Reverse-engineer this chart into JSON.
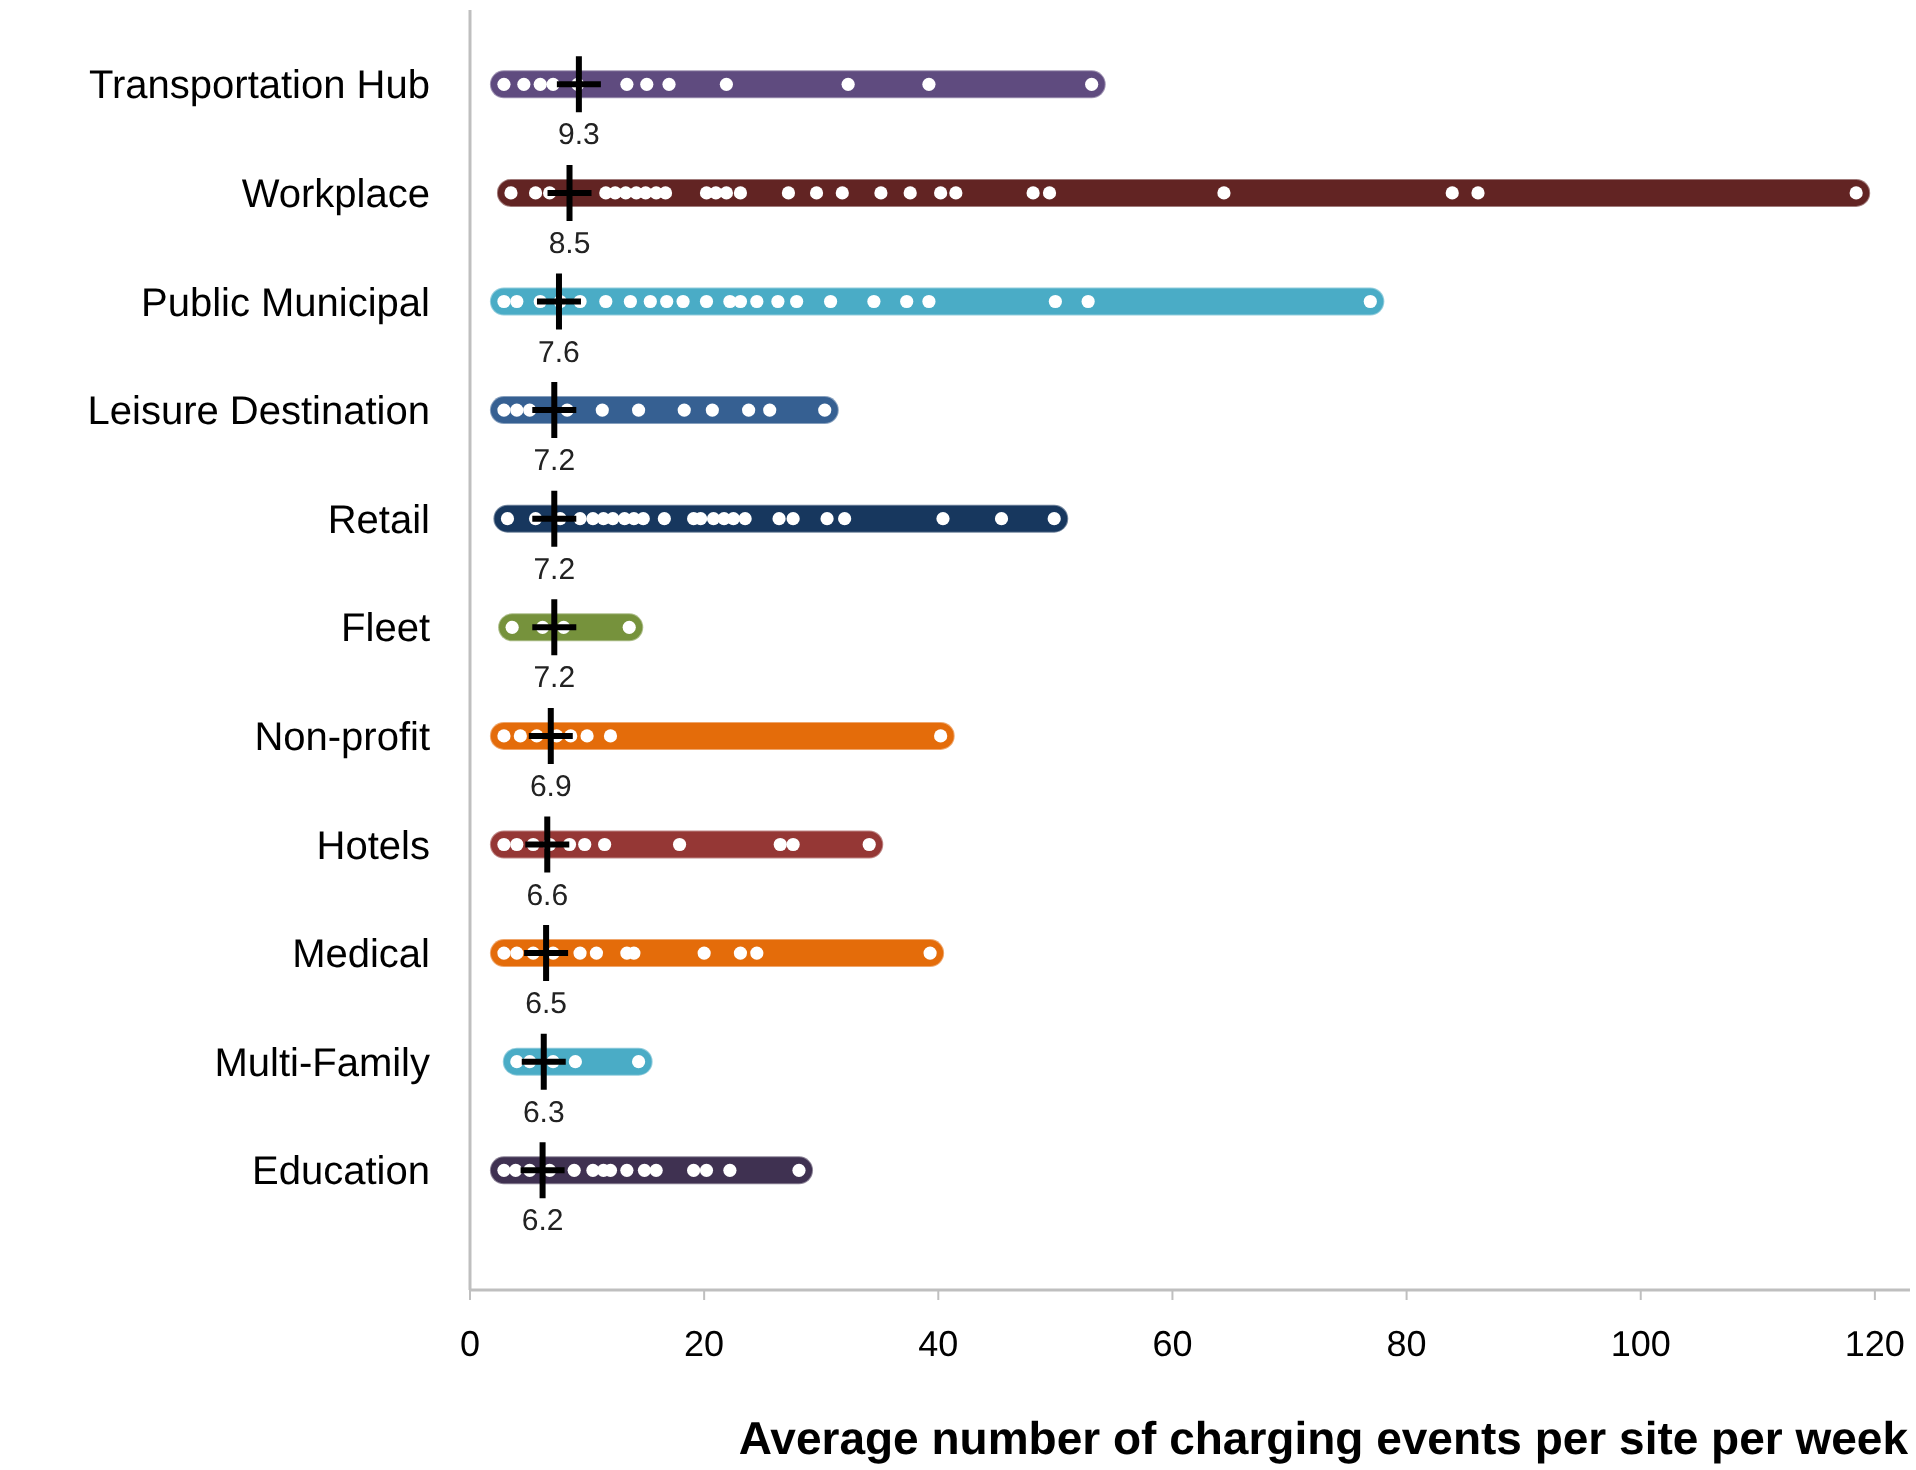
{
  "chart_data": {
    "type": "bar",
    "orientation": "horizontal",
    "xlabel": "Average number of charging events per site per week",
    "categories": [
      "Transportation Hub",
      "Workplace",
      "Public Municipal",
      "Leisure Destination",
      "Retail",
      "Fleet",
      "Non-profit",
      "Hotels",
      "Medical",
      "Multi-Family",
      "Education"
    ],
    "base": [
      1.7,
      2.3,
      1.7,
      1.7,
      2.0,
      2.4,
      1.7,
      1.7,
      1.7,
      2.8,
      1.7
    ],
    "values": [
      52.6,
      117.3,
      76.4,
      29.8,
      49.1,
      12.4,
      39.7,
      33.6,
      38.8,
      12.8,
      27.6
    ],
    "colors": [
      "#5f4b7f",
      "#622423",
      "#4aacc6",
      "#366092",
      "#17375e",
      "#76923c",
      "#e46c0a",
      "#953735",
      "#e46c0a",
      "#4aacc6",
      "#3f3151"
    ],
    "xlim": [
      0,
      123
    ],
    "xticks": [
      0,
      20,
      40,
      60,
      80,
      100,
      120
    ],
    "grid": false,
    "series": [
      {
        "type": "scatter",
        "color": "#ffffff",
        "marker": "circle",
        "x": [
          "Transportation Hub",
          "Transportation Hub",
          "Transportation Hub",
          "Transportation Hub",
          "Transportation Hub",
          "Transportation Hub",
          "Transportation Hub",
          "Transportation Hub",
          "Transportation Hub",
          "Transportation Hub",
          "Transportation Hub",
          "Transportation Hub",
          "Workplace",
          "Workplace",
          "Workplace",
          "Workplace",
          "Workplace",
          "Workplace",
          "Workplace",
          "Workplace",
          "Workplace",
          "Workplace",
          "Workplace",
          "Workplace",
          "Workplace",
          "Workplace",
          "Workplace",
          "Workplace",
          "Workplace",
          "Workplace",
          "Workplace",
          "Workplace",
          "Workplace",
          "Workplace",
          "Workplace",
          "Workplace",
          "Workplace",
          "Workplace",
          "Workplace",
          "Public Municipal",
          "Public Municipal",
          "Public Municipal",
          "Public Municipal",
          "Public Municipal",
          "Public Municipal",
          "Public Municipal",
          "Public Municipal",
          "Public Municipal",
          "Public Municipal",
          "Public Municipal",
          "Public Municipal",
          "Public Municipal",
          "Public Municipal",
          "Public Municipal",
          "Public Municipal",
          "Public Municipal",
          "Public Municipal",
          "Public Municipal",
          "Public Municipal",
          "Public Municipal",
          "Public Municipal",
          "Public Municipal",
          "Leisure Destination",
          "Leisure Destination",
          "Leisure Destination",
          "Leisure Destination",
          "Leisure Destination",
          "Leisure Destination",
          "Leisure Destination",
          "Leisure Destination",
          "Leisure Destination",
          "Leisure Destination",
          "Leisure Destination",
          "Retail",
          "Retail",
          "Retail",
          "Retail",
          "Retail",
          "Retail",
          "Retail",
          "Retail",
          "Retail",
          "Retail",
          "Retail",
          "Retail",
          "Retail",
          "Retail",
          "Retail",
          "Retail",
          "Retail",
          "Retail",
          "Retail",
          "Retail",
          "Retail",
          "Retail",
          "Retail",
          "Retail",
          "Fleet",
          "Fleet",
          "Fleet",
          "Fleet",
          "Non-profit",
          "Non-profit",
          "Non-profit",
          "Non-profit",
          "Non-profit",
          "Non-profit",
          "Non-profit",
          "Non-profit",
          "Hotels",
          "Hotels",
          "Hotels",
          "Hotels",
          "Hotels",
          "Hotels",
          "Hotels",
          "Hotels",
          "Hotels",
          "Hotels",
          "Hotels",
          "Medical",
          "Medical",
          "Medical",
          "Medical",
          "Medical",
          "Medical",
          "Medical",
          "Medical",
          "Medical",
          "Medical",
          "Medical",
          "Medical",
          "Multi-Family",
          "Multi-Family",
          "Multi-Family",
          "Multi-Family",
          "Multi-Family",
          "Education",
          "Education",
          "Education",
          "Education",
          "Education",
          "Education",
          "Education",
          "Education",
          "Education",
          "Education",
          "Education",
          "Education",
          "Education",
          "Education",
          "Education"
        ],
        "values": [
          2.9,
          4.6,
          6.0,
          7.1,
          9.2,
          13.4,
          15.1,
          17.0,
          21.9,
          32.3,
          39.2,
          53.1,
          3.5,
          5.6,
          6.8,
          11.6,
          12.4,
          13.3,
          14.2,
          15.0,
          15.9,
          16.7,
          20.2,
          21.0,
          21.9,
          23.1,
          27.2,
          29.6,
          31.8,
          35.1,
          37.6,
          40.2,
          41.5,
          48.1,
          49.5,
          64.4,
          83.9,
          86.1,
          118.4,
          2.9,
          4.0,
          6.0,
          7.7,
          9.4,
          11.6,
          13.7,
          15.4,
          16.8,
          18.2,
          20.2,
          22.2,
          23.1,
          24.5,
          26.3,
          27.9,
          30.8,
          34.5,
          37.3,
          39.2,
          50.0,
          52.8,
          76.9,
          2.9,
          4.0,
          5.1,
          8.3,
          11.3,
          14.4,
          18.3,
          20.7,
          23.8,
          25.6,
          30.3,
          3.2,
          5.6,
          7.7,
          9.4,
          10.5,
          11.4,
          12.2,
          13.2,
          14.0,
          14.8,
          16.6,
          19.1,
          19.7,
          20.8,
          21.7,
          22.5,
          23.5,
          26.4,
          27.6,
          30.5,
          32.0,
          40.4,
          45.4,
          49.9,
          3.6,
          6.2,
          8.0,
          13.6,
          2.9,
          4.3,
          5.7,
          7.4,
          8.6,
          10.0,
          12.0,
          40.2,
          2.9,
          4.0,
          5.4,
          6.8,
          8.5,
          9.8,
          11.5,
          17.9,
          26.5,
          27.6,
          34.1,
          2.9,
          4.0,
          5.4,
          7.1,
          9.4,
          10.8,
          13.4,
          14.0,
          20.0,
          23.1,
          24.5,
          39.3,
          4.0,
          5.1,
          7.1,
          9.0,
          14.4,
          2.9,
          3.9,
          5.1,
          6.8,
          8.9,
          10.5,
          11.4,
          12.0,
          13.4,
          14.9,
          15.9,
          19.1,
          20.2,
          22.2,
          28.1
        ]
      },
      {
        "type": "scatter",
        "color": "#000000",
        "marker": "cross",
        "data_labels": true,
        "x": [
          "Transportation Hub",
          "Workplace",
          "Public Municipal",
          "Leisure Destination",
          "Retail",
          "Fleet",
          "Non-profit",
          "Hotels",
          "Medical",
          "Multi-Family",
          "Education"
        ],
        "values": [
          9.3,
          8.5,
          7.6,
          7.2,
          7.2,
          7.2,
          6.9,
          6.6,
          6.5,
          6.3,
          6.2
        ]
      }
    ]
  }
}
